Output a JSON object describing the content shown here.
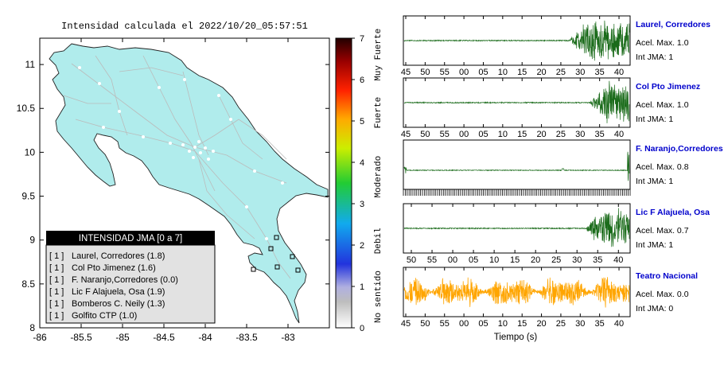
{
  "map": {
    "title": "Intensidad calculada el 2022/10/20_05:57:51",
    "x_ticks": [
      "-86",
      "-85.5",
      "-85",
      "-84.5",
      "-84",
      "-83.5",
      "-83"
    ],
    "y_ticks": [
      "11",
      "10.5",
      "10",
      "9.5",
      "9",
      "8.5",
      "8"
    ],
    "colors": {
      "land": "#b0ecec",
      "roads": "#bbbbbb",
      "sea": "#ffffff",
      "border": "#222222"
    }
  },
  "legend": {
    "title": "INTENSIDAD JMA [0 a 7]",
    "items": [
      {
        "level": "[ 1 ]",
        "label": "Laurel, Corredores (1.8)"
      },
      {
        "level": "[ 1 ]",
        "label": "Col Pto Jimenez (1.6)"
      },
      {
        "level": "[ 1 ]",
        "label": "F. Naranjo,Corredores (0.0)"
      },
      {
        "level": "[ 1 ]",
        "label": "Lic F Alajuela, Osa (1.9)"
      },
      {
        "level": "[ 1 ]",
        "label": "Bomberos C. Neily (1.3)"
      },
      {
        "level": "[ 1 ]",
        "label": "Golfito CTP (1.0)"
      }
    ]
  },
  "colorbar": {
    "ticks": [
      "7",
      "6",
      "5",
      "4",
      "3",
      "2",
      "1",
      "0"
    ],
    "labels": [
      "Muy Fuerte",
      "Fuerte",
      "Moderado",
      "Debil",
      "No sentido"
    ]
  },
  "waveforms": {
    "xlabel": "Tiempo (s)",
    "panels": [
      {
        "name": "Laurel, Corredores",
        "acel": "Acel. Max. 1.0",
        "int": "Int JMA: 1",
        "color": "#1a6b1a",
        "ticks": [
          "45",
          "50",
          "55",
          "00",
          "05",
          "10",
          "15",
          "20",
          "25",
          "30",
          "35",
          "40"
        ],
        "onset": 0.73,
        "amp": 1.0,
        "style": "burst"
      },
      {
        "name": "Col Pto Jimenez",
        "acel": "Acel. Max. 1.0",
        "int": "Int JMA: 1",
        "color": "#1a6b1a",
        "ticks": [
          "45",
          "50",
          "55",
          "00",
          "05",
          "10",
          "15",
          "20",
          "25",
          "30",
          "35",
          "40"
        ],
        "onset": 0.82,
        "amp": 1.0,
        "style": "burst"
      },
      {
        "name": "F. Naranjo,Corredores",
        "acel": "Acel. Max. 0.8",
        "int": "Int JMA: 1",
        "color": "#1a6b1a",
        "ticks": [],
        "onset": 0.99,
        "amp": 0.8,
        "style": "flat"
      },
      {
        "name": "Lic F Alajuela, Osa",
        "acel": "Acel. Max. 0.7",
        "int": "Int JMA: 1",
        "color": "#1a6b1a",
        "ticks": [
          "50",
          "55",
          "00",
          "05",
          "10",
          "15",
          "20",
          "25",
          "30",
          "35",
          "40"
        ],
        "onset": 0.8,
        "amp": 0.7,
        "style": "burst"
      },
      {
        "name": "Teatro Nacional",
        "acel": "Acel. Max. 0.0",
        "int": "Int JMA: 0",
        "color": "#ffa500",
        "ticks": [
          "45",
          "50",
          "55",
          "00",
          "05",
          "10",
          "15",
          "20",
          "25",
          "30",
          "35",
          "40"
        ],
        "onset": 0.0,
        "amp": 0.0,
        "style": "noise"
      }
    ]
  }
}
